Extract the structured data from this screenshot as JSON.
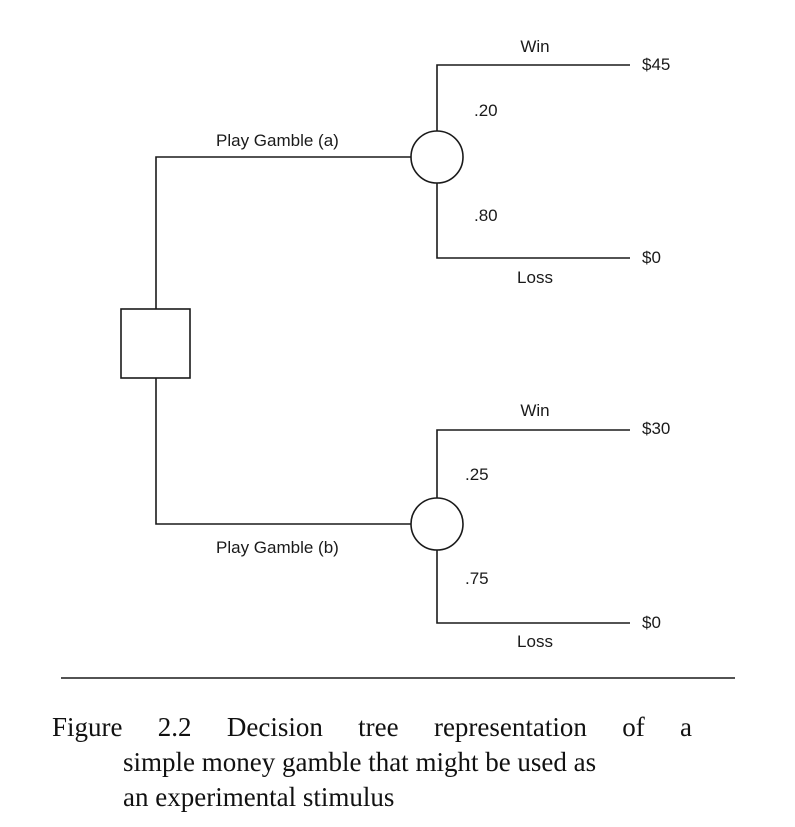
{
  "diagram": {
    "branches": [
      {
        "label": "Play Gamble (a)",
        "outcomes": [
          {
            "label": "Win",
            "probability": ".20",
            "payoff": "$45"
          },
          {
            "label": "Loss",
            "probability": ".80",
            "payoff": "$0"
          }
        ]
      },
      {
        "label": "Play Gamble (b)",
        "outcomes": [
          {
            "label": "Win",
            "probability": ".25",
            "payoff": "$30"
          },
          {
            "label": "Loss",
            "probability": ".75",
            "payoff": "$0"
          }
        ]
      }
    ]
  },
  "caption": {
    "line1": "Figure 2.2 Decision tree representation of a",
    "line2": "simple money gamble that might be used as",
    "line3": "an experimental stimulus"
  }
}
